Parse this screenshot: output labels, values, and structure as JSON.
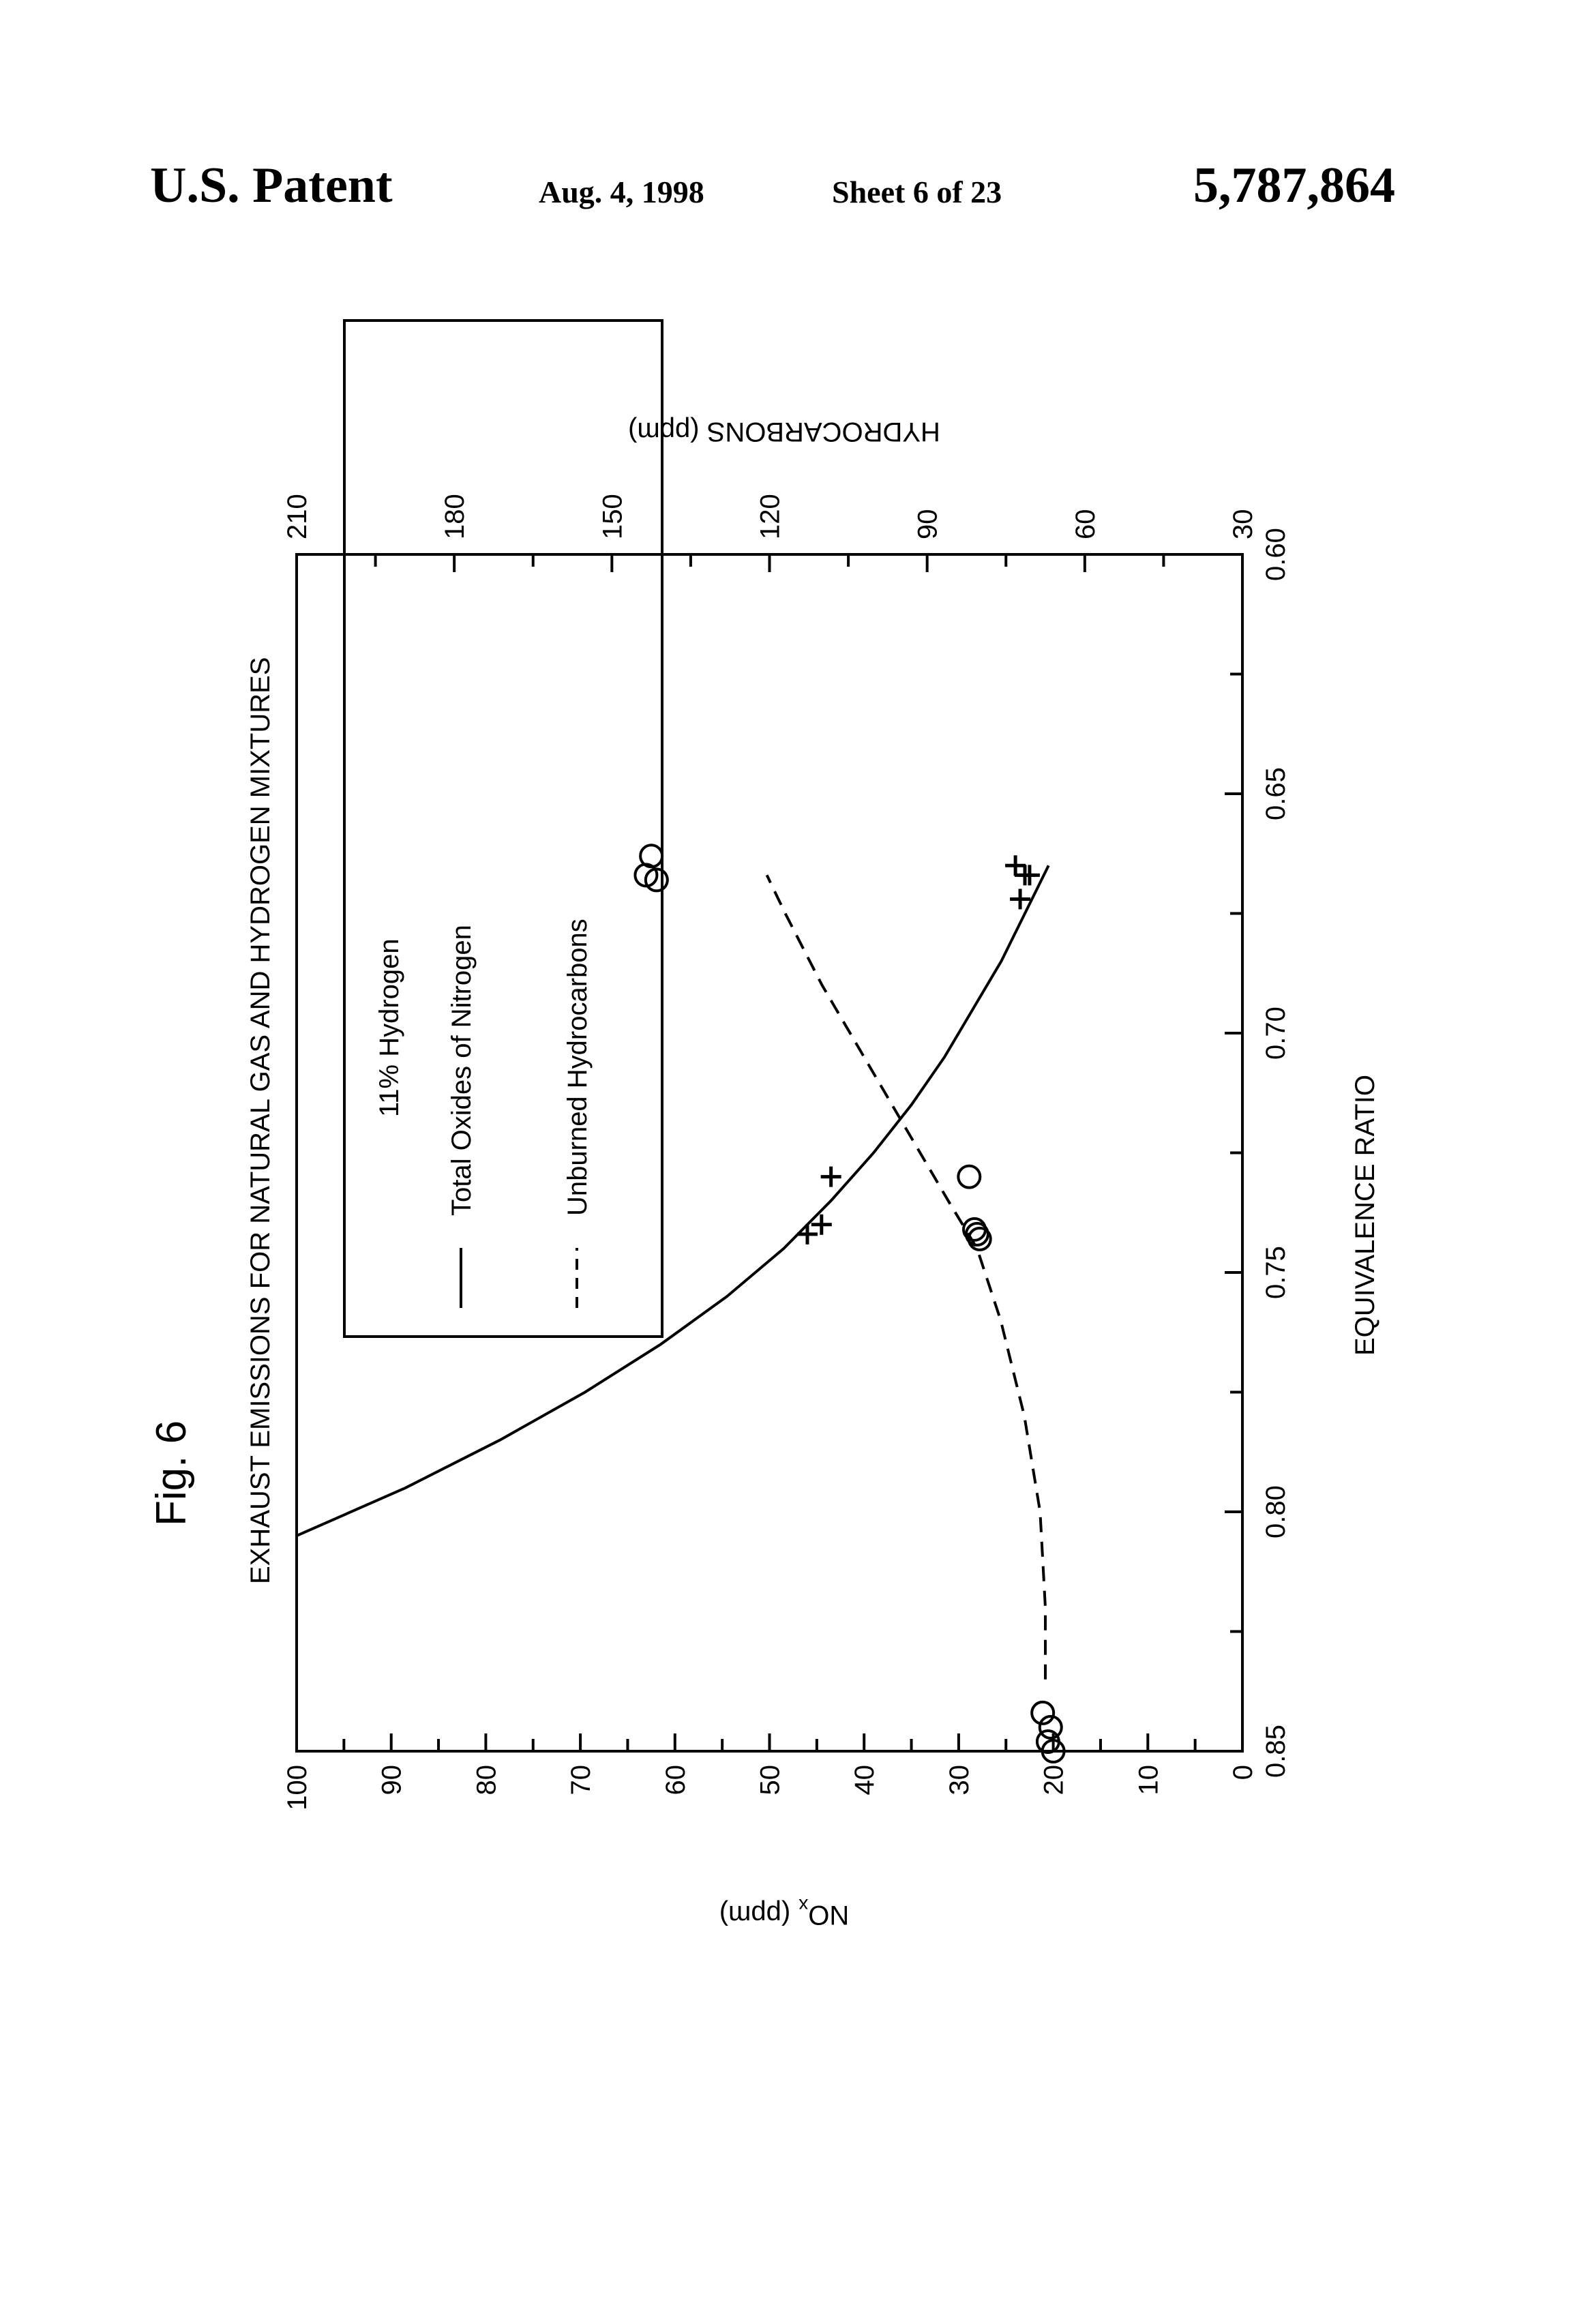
{
  "header": {
    "left": "U.S. Patent",
    "date": "Aug. 4, 1998",
    "sheet": "Sheet 6 of 23",
    "number": "5,787,864"
  },
  "figure_label": "Fig. 6",
  "chart_data": {
    "type": "line",
    "title": "EXHAUST EMISSIONS FOR NATURAL GAS AND HYDROGEN MIXTURES",
    "xlabel": "EQUIVALENCE RATIO",
    "ylabel": "NOx (ppm)",
    "ylabel_main": "NO",
    "ylabel_sub": "x",
    "ylabel_unit": "(ppm)",
    "y2label": "HYDROCARBONS (ppm)",
    "xlim": [
      0.85,
      0.6
    ],
    "ylim": [
      0,
      100
    ],
    "y2lim": [
      30,
      210
    ],
    "x_ticks": [
      "0.85",
      "0.80",
      "0.75",
      "0.70",
      "0.65",
      "0.60"
    ],
    "y_ticks": [
      "0",
      "10",
      "20",
      "30",
      "40",
      "50",
      "60",
      "70",
      "80",
      "90",
      "100"
    ],
    "y2_ticks": [
      "30",
      "60",
      "90",
      "120",
      "150",
      "180",
      "210"
    ],
    "legend": {
      "title": "11% Hydrogen",
      "entries": [
        "Total Oxides of Nitrogen",
        "Unburned Hydrocarbons"
      ]
    },
    "series": [
      {
        "name": "Total Oxides of Nitrogen",
        "style": "solid",
        "curve": {
          "x": [
            0.805,
            0.795,
            0.785,
            0.775,
            0.765,
            0.755,
            0.745,
            0.735,
            0.725,
            0.715,
            0.705,
            0.695,
            0.685,
            0.675,
            0.665
          ],
          "y": [
            100,
            88.5,
            78.5,
            69.5,
            61.5,
            54.5,
            48.5,
            43.5,
            39.0,
            35.0,
            31.5,
            28.5,
            25.5,
            23.0,
            20.5
          ]
        },
        "points": {
          "x": [
            0.742,
            0.74,
            0.73,
            0.672,
            0.667,
            0.665,
            0.667
          ],
          "y": [
            46,
            44.5,
            43.5,
            23.5,
            23.0,
            24.0,
            22.5
          ]
        }
      },
      {
        "name": "Unburned Hydrocarbons",
        "style": "dashed",
        "curve": {
          "x": [
            0.835,
            0.82,
            0.8,
            0.78,
            0.76,
            0.745,
            0.735,
            0.72,
            0.705,
            0.69,
            0.675,
            0.667
          ],
          "y": [
            67.5,
            67.5,
            68.5,
            71.5,
            76.0,
            80.5,
            86.0,
            94.0,
            102.0,
            110.0,
            117.0,
            120.5
          ]
        },
        "points": {
          "x": [
            0.85,
            0.848,
            0.845,
            0.842,
            0.743,
            0.742,
            0.741,
            0.73,
            0.667,
            0.668,
            0.663
          ],
          "y": [
            66,
            67,
            66.5,
            68,
            80,
            80.5,
            81,
            82,
            143.5,
            141.5,
            142.5
          ]
        }
      }
    ]
  }
}
